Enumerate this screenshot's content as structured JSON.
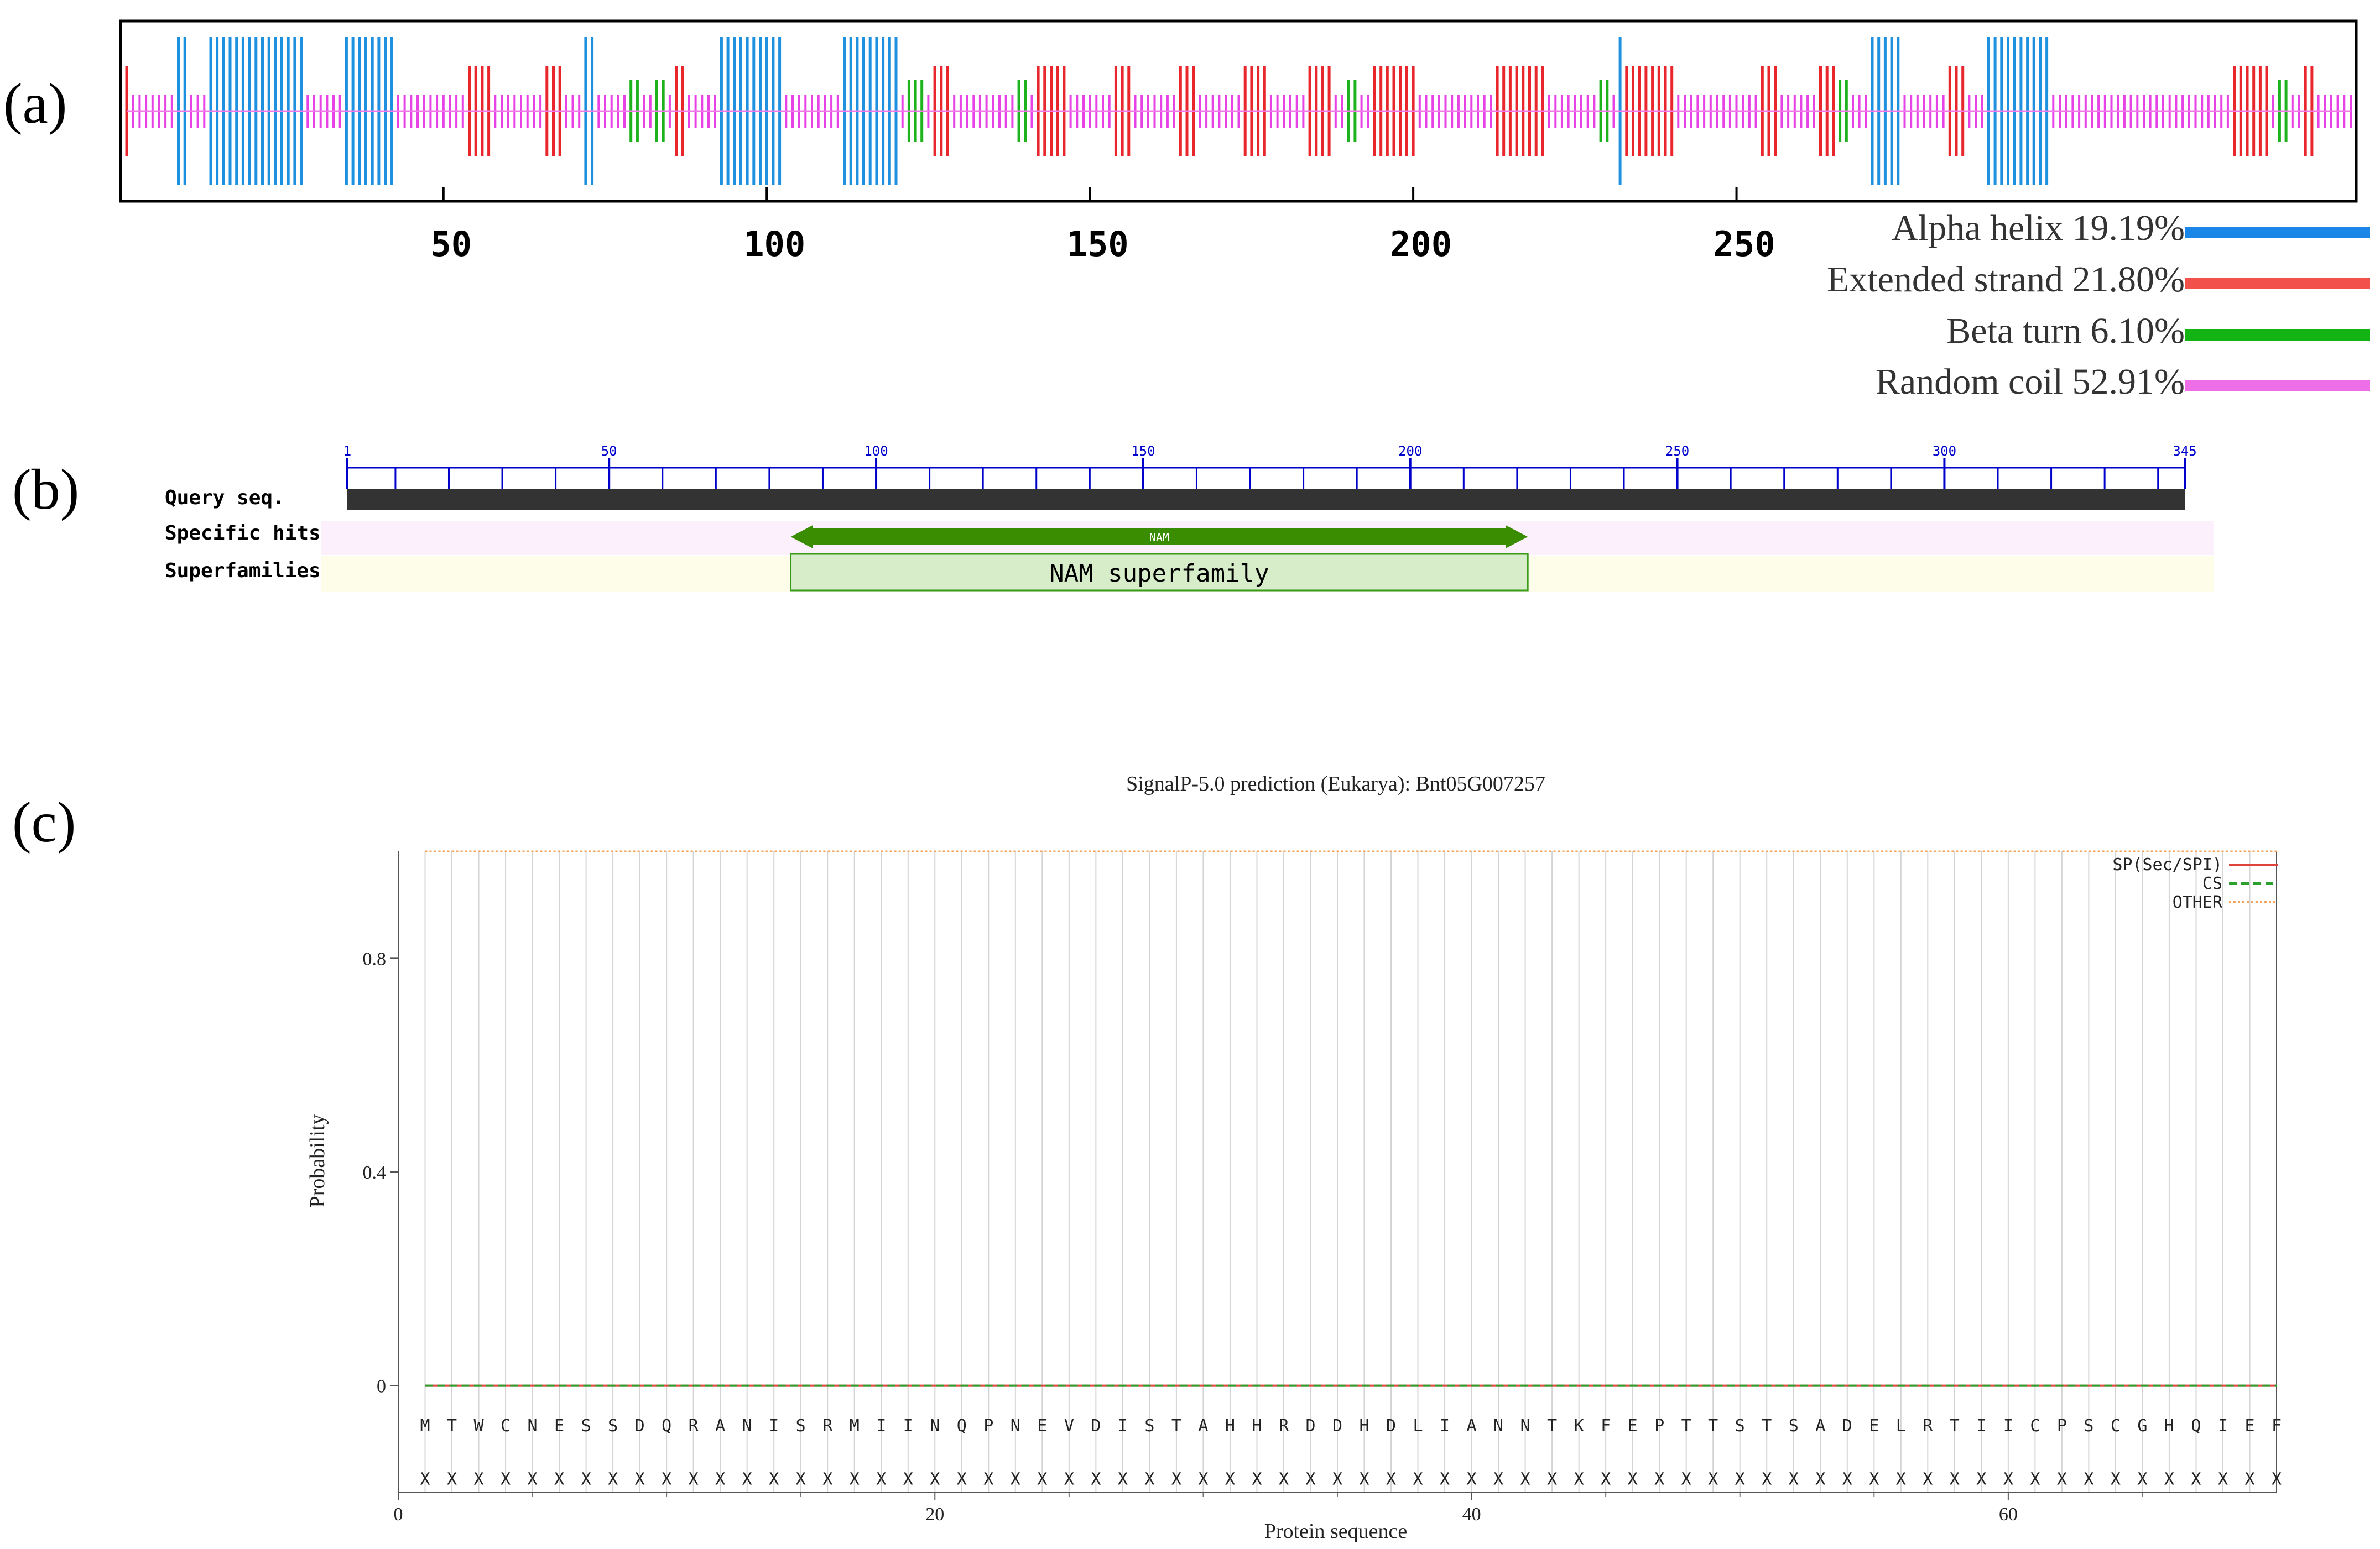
{
  "panels": {
    "a": {
      "label": "(a)"
    },
    "b": {
      "label": "(b)"
    },
    "c": {
      "label": "(c)"
    }
  },
  "chart_data": [
    {
      "type": "secondary-structure-track",
      "panel": "(a)",
      "x_ticks": [
        50,
        100,
        150,
        200,
        250
      ],
      "xlim": [
        1,
        345
      ],
      "colors": {
        "helix": "#1e90e0",
        "strand": "#e8262b",
        "turn": "#1db31d",
        "coil": "#e642e6"
      },
      "legend": [
        {
          "key": "helix",
          "label": "Alpha helix 19.19%",
          "color": "#1a87e8"
        },
        {
          "key": "strand",
          "label": "Extended strand 21.80%",
          "color": "#f2504a"
        },
        {
          "key": "turn",
          "label": "Beta turn 6.10%",
          "color": "#13b313"
        },
        {
          "key": "coil",
          "label": "Random coil 52.91%",
          "color": "#ee6ee8"
        }
      ],
      "segments": [
        {
          "type": "strand",
          "start": 1,
          "end": 1
        },
        {
          "type": "helix",
          "start": 9,
          "end": 10
        },
        {
          "type": "helix",
          "start": 14,
          "end": 28
        },
        {
          "type": "helix",
          "start": 35,
          "end": 42
        },
        {
          "type": "strand",
          "start": 54,
          "end": 57
        },
        {
          "type": "strand",
          "start": 66,
          "end": 68
        },
        {
          "type": "helix",
          "start": 72,
          "end": 73
        },
        {
          "type": "turn",
          "start": 79,
          "end": 80
        },
        {
          "type": "turn",
          "start": 83,
          "end": 84
        },
        {
          "type": "strand",
          "start": 86,
          "end": 87
        },
        {
          "type": "helix",
          "start": 93,
          "end": 102
        },
        {
          "type": "helix",
          "start": 112,
          "end": 120
        },
        {
          "type": "turn",
          "start": 122,
          "end": 124
        },
        {
          "type": "strand",
          "start": 126,
          "end": 128
        },
        {
          "type": "turn",
          "start": 139,
          "end": 140
        },
        {
          "type": "strand",
          "start": 142,
          "end": 146
        },
        {
          "type": "strand",
          "start": 154,
          "end": 156
        },
        {
          "type": "strand",
          "start": 164,
          "end": 166
        },
        {
          "type": "strand",
          "start": 174,
          "end": 177
        },
        {
          "type": "strand",
          "start": 184,
          "end": 187
        },
        {
          "type": "turn",
          "start": 190,
          "end": 191
        },
        {
          "type": "strand",
          "start": 194,
          "end": 200
        },
        {
          "type": "strand",
          "start": 213,
          "end": 220
        },
        {
          "type": "turn",
          "start": 229,
          "end": 230
        },
        {
          "type": "helix",
          "start": 232,
          "end": 232
        },
        {
          "type": "strand",
          "start": 233,
          "end": 240
        },
        {
          "type": "strand",
          "start": 254,
          "end": 256
        },
        {
          "type": "strand",
          "start": 263,
          "end": 265
        },
        {
          "type": "turn",
          "start": 266,
          "end": 267
        },
        {
          "type": "helix",
          "start": 271,
          "end": 275
        },
        {
          "type": "strand",
          "start": 283,
          "end": 285
        },
        {
          "type": "helix",
          "start": 289,
          "end": 298
        },
        {
          "type": "strand",
          "start": 327,
          "end": 332
        },
        {
          "type": "turn",
          "start": 334,
          "end": 335
        },
        {
          "type": "strand",
          "start": 338,
          "end": 339
        }
      ]
    },
    {
      "type": "domain-map",
      "panel": "(b)",
      "xlim": [
        1,
        345
      ],
      "tick_labels": [
        1,
        50,
        100,
        150,
        200,
        250,
        300,
        345
      ],
      "rows": [
        "Query seq.",
        "Specific hits",
        "Superfamilies"
      ],
      "specific_hit": {
        "label": "NAM",
        "start": 84,
        "end": 222
      },
      "superfamily": {
        "label": "NAM superfamily",
        "start": 84,
        "end": 222
      }
    },
    {
      "type": "line",
      "panel": "(c)",
      "title": "SignalP-5.0 prediction (Eukarya):  Bnt05G007257",
      "xlabel": "Protein sequence",
      "ylabel": "Probability",
      "xlim": [
        0,
        70
      ],
      "ylim": [
        -0.2,
        1.0
      ],
      "x_ticks": [
        0,
        20,
        40,
        60
      ],
      "y_ticks": [
        0,
        0.4,
        0.8
      ],
      "sequence": "MTWCNESSDQRANISRMIINQPNEVDISTAHHRDDHDLIANNTKFEPTTSTSADELRTIICPSCGHQIEF",
      "annotation_char": "X",
      "series": [
        {
          "name": "SP(Sec/SPI)",
          "color": "#e0423c",
          "style": "solid",
          "values": {
            "from": 1,
            "to": 70,
            "constant": 0.0
          }
        },
        {
          "name": "CS",
          "color": "#2ca02c",
          "style": "dashed",
          "values": {
            "from": 1,
            "to": 70,
            "constant": 0.0
          }
        },
        {
          "name": "OTHER",
          "color": "#f5a35c",
          "style": "dotted",
          "values": {
            "from": 1,
            "to": 70,
            "constant": 1.0
          }
        }
      ],
      "legend_position": "top-right"
    }
  ]
}
